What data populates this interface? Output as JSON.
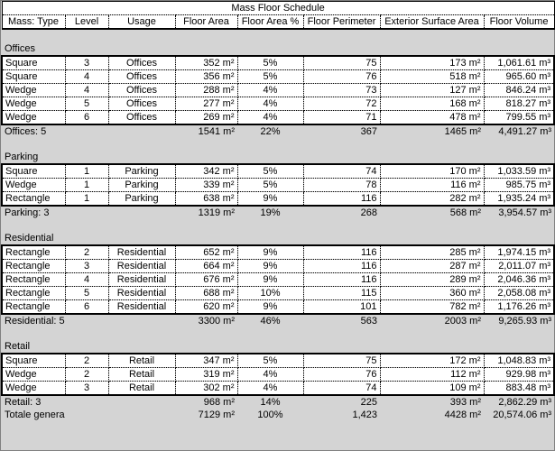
{
  "title": "Mass Floor Schedule",
  "columns": [
    "Mass: Type",
    "Level",
    "Usage",
    "Floor Area",
    "Floor Area %",
    "Floor Perimeter",
    "Exterior Surface Area",
    "Floor Volume"
  ],
  "groups": [
    {
      "name": "Offices",
      "rows": [
        [
          "Square",
          "3",
          "Offices",
          "352 m²",
          "5%",
          "75",
          "173 m²",
          "1,061.61 m³"
        ],
        [
          "Square",
          "4",
          "Offices",
          "356 m²",
          "5%",
          "76",
          "518 m²",
          "965.60 m³"
        ],
        [
          "Wedge",
          "4",
          "Offices",
          "288 m²",
          "4%",
          "73",
          "127 m²",
          "846.24 m³"
        ],
        [
          "Wedge",
          "5",
          "Offices",
          "277 m²",
          "4%",
          "72",
          "168 m²",
          "818.27 m³"
        ],
        [
          "Wedge",
          "6",
          "Offices",
          "269 m²",
          "4%",
          "71",
          "478 m²",
          "799.55 m³"
        ]
      ],
      "total": [
        "Offices: 5",
        "",
        "",
        "1541 m²",
        "22%",
        "367",
        "1465 m²",
        "4,491.27 m³"
      ]
    },
    {
      "name": "Parking",
      "rows": [
        [
          "Square",
          "1",
          "Parking",
          "342 m²",
          "5%",
          "74",
          "170 m²",
          "1,033.59 m³"
        ],
        [
          "Wedge",
          "1",
          "Parking",
          "339 m²",
          "5%",
          "78",
          "116 m²",
          "985.75 m³"
        ],
        [
          "Rectangle",
          "1",
          "Parking",
          "638 m²",
          "9%",
          "116",
          "282 m²",
          "1,935.24 m³"
        ]
      ],
      "total": [
        "Parking: 3",
        "",
        "",
        "1319 m²",
        "19%",
        "268",
        "568 m²",
        "3,954.57 m³"
      ]
    },
    {
      "name": "Residential",
      "rows": [
        [
          "Rectangle",
          "2",
          "Residential",
          "652 m²",
          "9%",
          "116",
          "285 m²",
          "1,974.15 m³"
        ],
        [
          "Rectangle",
          "3",
          "Residential",
          "664 m²",
          "9%",
          "116",
          "287 m²",
          "2,011.07 m³"
        ],
        [
          "Rectangle",
          "4",
          "Residential",
          "676 m²",
          "9%",
          "116",
          "289 m²",
          "2,046.36 m³"
        ],
        [
          "Rectangle",
          "5",
          "Residential",
          "688 m²",
          "10%",
          "115",
          "360 m²",
          "2,058.08 m³"
        ],
        [
          "Rectangle",
          "6",
          "Residential",
          "620 m²",
          "9%",
          "101",
          "782 m²",
          "1,176.26 m³"
        ]
      ],
      "total": [
        "Residential: 5",
        "",
        "",
        "3300 m²",
        "46%",
        "563",
        "2003 m²",
        "9,265.93 m³"
      ]
    },
    {
      "name": "Retail",
      "rows": [
        [
          "Square",
          "2",
          "Retail",
          "347 m²",
          "5%",
          "75",
          "172 m²",
          "1,048.83 m³"
        ],
        [
          "Wedge",
          "2",
          "Retail",
          "319 m²",
          "4%",
          "76",
          "112 m²",
          "929.98 m³"
        ],
        [
          "Wedge",
          "3",
          "Retail",
          "302 m²",
          "4%",
          "74",
          "109 m²",
          "883.48 m³"
        ]
      ],
      "total": [
        "Retail: 3",
        "",
        "",
        "968 m²",
        "14%",
        "225",
        "393 m²",
        "2,862.29 m³"
      ]
    }
  ],
  "grand_total": [
    "Totale generale",
    "",
    "",
    "7129 m²",
    "100%",
    "1,423",
    "4428 m²",
    "20,574.06 m³"
  ]
}
